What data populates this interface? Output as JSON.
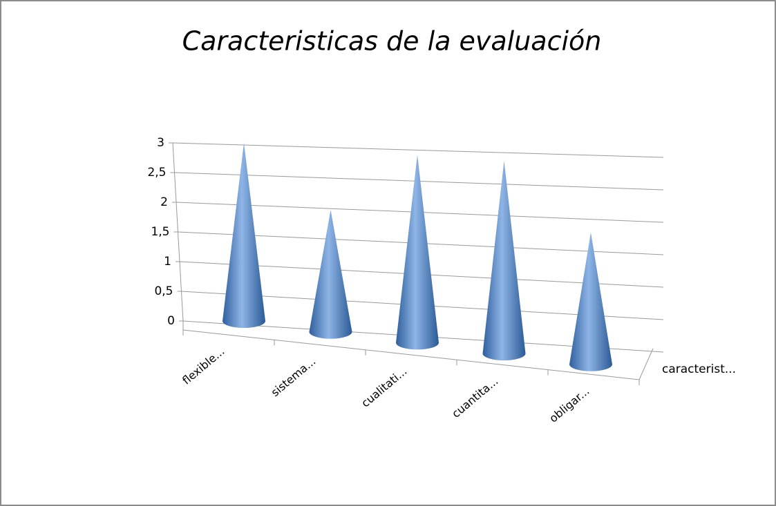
{
  "chart_data": {
    "type": "cone3d",
    "title": "Caracteristicas de la evaluación",
    "categories": [
      "flexible...",
      "sistema...",
      "cualitati...",
      "cuantita...",
      "obligar..."
    ],
    "series": [
      {
        "name": "caracterist...",
        "color": "#4f81bd",
        "values": [
          3,
          2,
          3,
          3,
          2
        ]
      }
    ],
    "ylim": [
      0,
      3
    ],
    "yticks": [
      0,
      {
        "value": 0.5,
        "label": "0,5"
      },
      1,
      {
        "value": 1.5,
        "label": "1,5"
      },
      2,
      {
        "value": 2.5,
        "label": "2,5"
      },
      3
    ],
    "grid": true
  }
}
